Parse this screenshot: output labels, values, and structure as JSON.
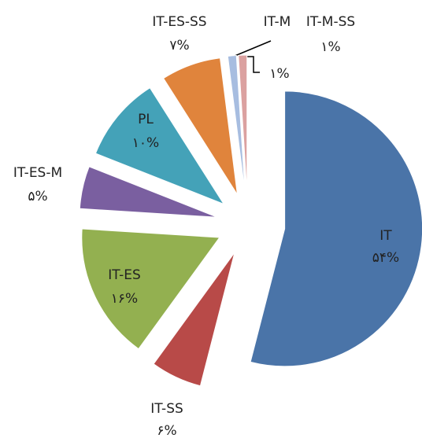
{
  "chart_data": {
    "type": "pie",
    "categories": [
      "IT",
      "IT-SS",
      "IT-ES",
      "IT-ES-M",
      "PL",
      "IT-ES-SS",
      "IT-M",
      "IT-M-SS"
    ],
    "values": [
      54,
      6,
      16,
      5,
      10,
      7,
      1,
      1
    ],
    "value_labels": [
      "۵۴%",
      "۶%",
      "۱۶%",
      "۵%",
      "۱۰%",
      "۷%",
      "۱%",
      "۱%"
    ],
    "colors": [
      "#4a74a8",
      "#b84a48",
      "#93b050",
      "#7a5fa0",
      "#44a2b8",
      "#e0843c",
      "#a7bde0",
      "#dba1a0"
    ]
  }
}
